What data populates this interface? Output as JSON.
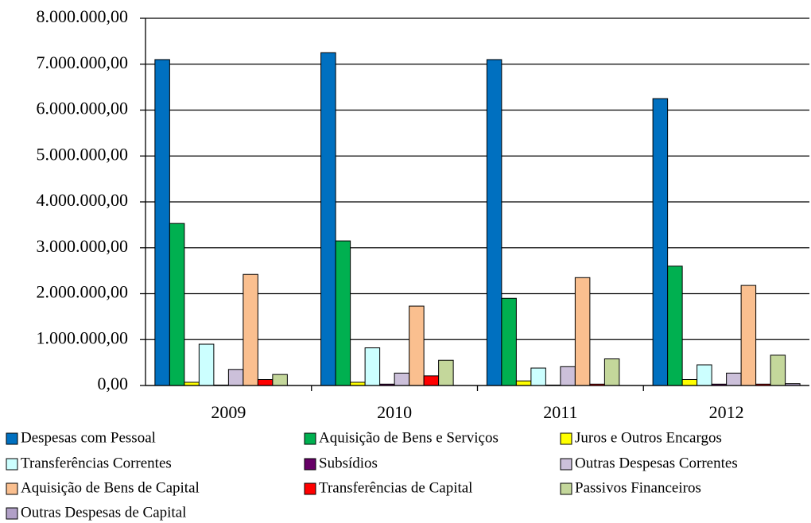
{
  "chart_data": {
    "type": "bar",
    "categories": [
      "2009",
      "2010",
      "2011",
      "2012"
    ],
    "series": [
      {
        "name": "Despesas com Pessoal",
        "color": "#0070c0",
        "values": [
          7100000,
          7250000,
          7100000,
          6250000
        ]
      },
      {
        "name": "Aquisição de Bens e Serviços",
        "color": "#00b050",
        "values": [
          3530000,
          3150000,
          1900000,
          2600000
        ]
      },
      {
        "name": "Juros e Outros Encargos",
        "color": "#ffff00",
        "values": [
          70000,
          70000,
          100000,
          130000
        ]
      },
      {
        "name": "Transferências  Correntes",
        "color": "#ccffff",
        "values": [
          900000,
          820000,
          380000,
          450000
        ]
      },
      {
        "name": "Subsídios",
        "color": "#660066",
        "values": [
          10000,
          30000,
          10000,
          30000
        ]
      },
      {
        "name": "Outras Despesas Correntes",
        "color": "#ccc0da",
        "values": [
          350000,
          270000,
          410000,
          270000
        ]
      },
      {
        "name": "Aquisição de Bens de Capital",
        "color": "#fabf8f",
        "values": [
          2420000,
          1730000,
          2350000,
          2180000
        ]
      },
      {
        "name": "Transferências  de Capital",
        "color": "#ff0000",
        "values": [
          130000,
          210000,
          30000,
          30000
        ]
      },
      {
        "name": "Passivos Financeiros",
        "color": "#c4d79b",
        "values": [
          240000,
          550000,
          580000,
          660000
        ]
      },
      {
        "name": "Outras Despesas de Capital",
        "color": "#b1a0c7",
        "values": [
          0,
          0,
          0,
          40000
        ]
      }
    ],
    "ylim": [
      0,
      8000000
    ],
    "yticks": [
      {
        "value": 0,
        "label": "0,00"
      },
      {
        "value": 1000000,
        "label": "1.000.000,00"
      },
      {
        "value": 2000000,
        "label": "2.000.000,00"
      },
      {
        "value": 3000000,
        "label": "3.000.000,00"
      },
      {
        "value": 4000000,
        "label": "4.000.000,00"
      },
      {
        "value": 5000000,
        "label": "5.000.000,00"
      },
      {
        "value": 6000000,
        "label": "6.000.000,00"
      },
      {
        "value": 7000000,
        "label": "7.000.000,00"
      },
      {
        "value": 8000000,
        "label": "8.000.000,00"
      }
    ],
    "grid": true,
    "legend": "bottom"
  }
}
